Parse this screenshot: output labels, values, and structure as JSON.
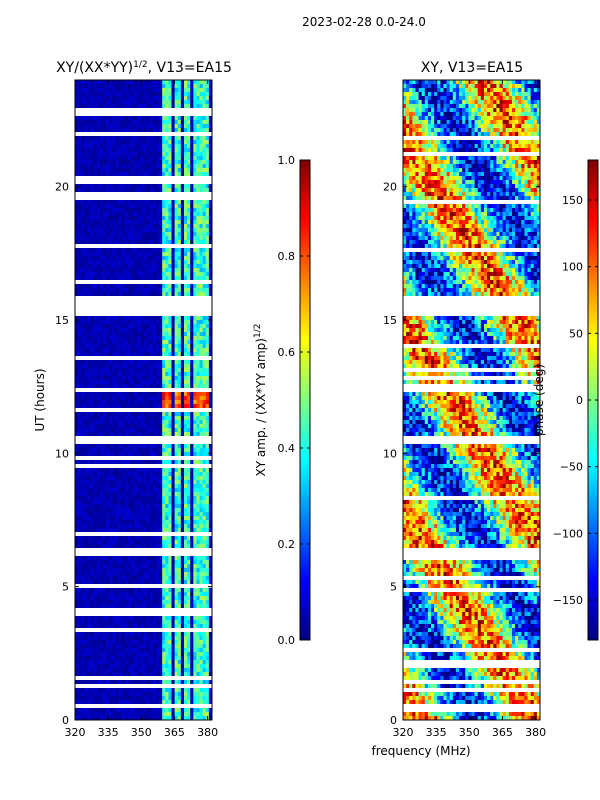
{
  "suptitle": "2023-02-28 0.0-24.0",
  "colors": {
    "jet": [
      "#00007f",
      "#0000ff",
      "#007fff",
      "#00ffff",
      "#7fff7f",
      "#ffff00",
      "#ff7f00",
      "#ff0000",
      "#7f0000"
    ],
    "gap": "#ffffff"
  },
  "chart_data": [
    {
      "type": "heatmap",
      "title_main": "XY/(XX*YY)",
      "title_sup": "1/2",
      "title_rest": ", V13=EA15",
      "xlabel": "",
      "ylabel": "UT (hours)",
      "xlim": [
        320,
        382
      ],
      "ylim": [
        0,
        24
      ],
      "x_ticks": [
        "320",
        "335",
        "350",
        "365",
        "380"
      ],
      "y_ticks": [
        "0",
        "5",
        "10",
        "15",
        "20"
      ],
      "band_channels_mhz": [
        360,
        363.5,
        365,
        368,
        369,
        372,
        373,
        376,
        377,
        380
      ],
      "colorbar": {
        "label_main": "XY amp. / (XX*YY amp)",
        "label_sup": "1/2",
        "range": [
          0.0,
          1.0
        ],
        "ticks": [
          "0.0",
          "0.2",
          "0.4",
          "0.6",
          "0.8",
          "1.0"
        ]
      }
    },
    {
      "type": "heatmap",
      "title": "XY, V13=EA15",
      "xlabel": "frequency (MHz)",
      "ylabel": "",
      "xlim": [
        320,
        382
      ],
      "ylim": [
        0,
        24
      ],
      "x_ticks": [
        "320",
        "335",
        "350",
        "365",
        "380"
      ],
      "y_ticks": [
        "0",
        "5",
        "10",
        "15",
        "20"
      ],
      "colorbar": {
        "label": "phase (deg)",
        "range": [
          -180,
          180
        ],
        "ticks": [
          "−150",
          "−100",
          "−50",
          "0",
          "50",
          "100",
          "150"
        ]
      }
    }
  ],
  "data_gaps_ut_hours": [
    [
      0.4,
      0.6
    ],
    [
      15.2,
      15.9
    ],
    [
      10.4,
      10.6
    ],
    [
      6.1,
      6.3
    ],
    [
      12.3,
      12.4
    ]
  ]
}
